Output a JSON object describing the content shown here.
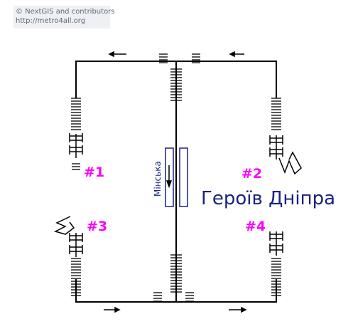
{
  "credit": {
    "line1": "© NextGIS and contributors",
    "line2": "http://metro4all.org"
  },
  "station": {
    "name": "Героїв Дніпра",
    "platform_direction": "Мінська"
  },
  "exits": [
    {
      "label": "#1"
    },
    {
      "label": "#2"
    },
    {
      "label": "#3"
    },
    {
      "label": "#4"
    }
  ],
  "colors": {
    "line": "#000000",
    "exit_label": "#ff00ff",
    "station": "#1a237e",
    "credit_bg": "#eef0f3",
    "credit_text": "#5c6b7a"
  },
  "icons": [
    "direction-arrow-icon",
    "stairs-icon",
    "turnstile-icon",
    "exit-zigzag-icon",
    "platform-train-icon"
  ]
}
